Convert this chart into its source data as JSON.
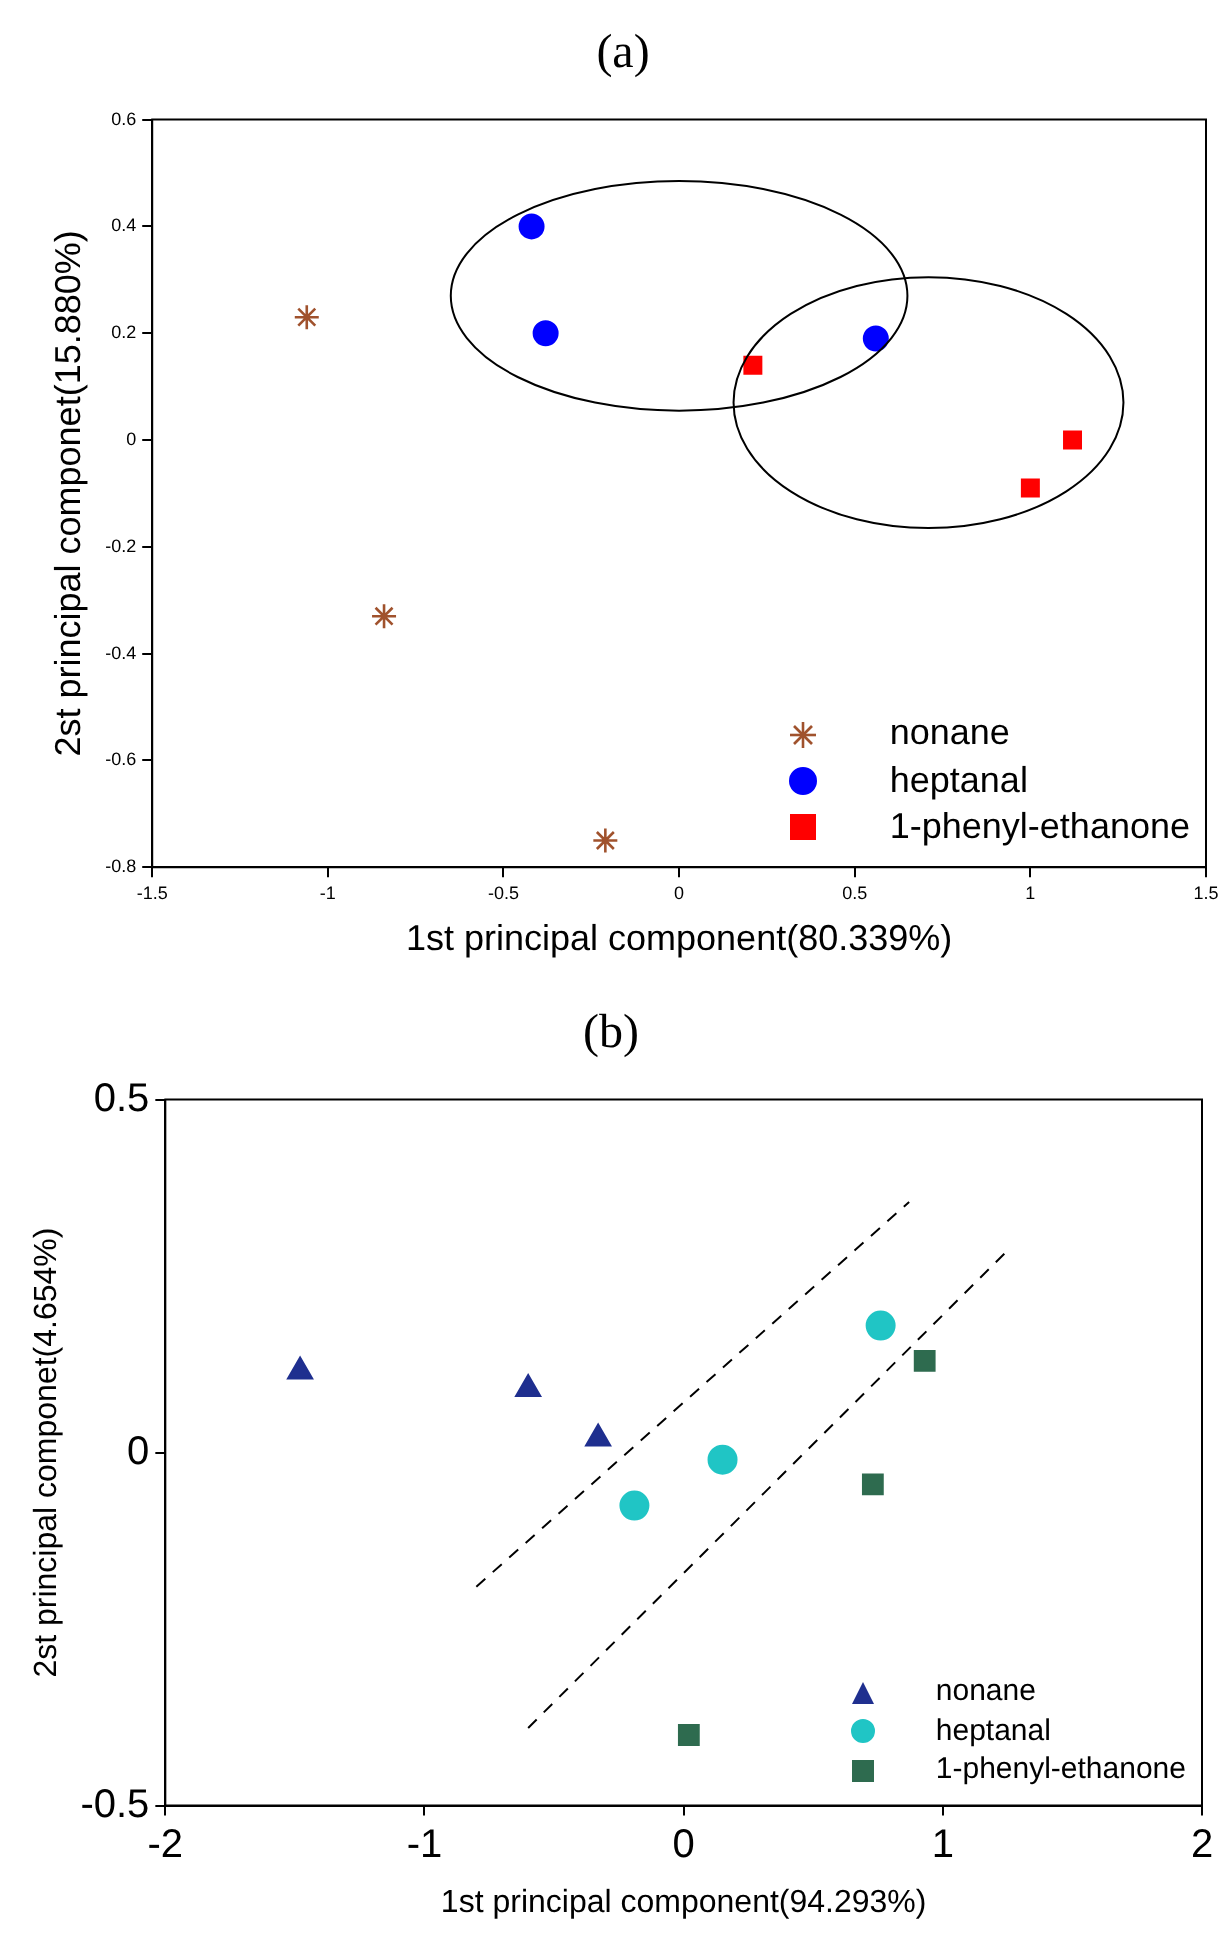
{
  "chart_data": [
    {
      "type": "scatter",
      "title": "(a)",
      "xlabel": "1st principal component(80.339%)",
      "ylabel": "2st principal componet(15.880%)",
      "xlim": [
        -1.5,
        1.5
      ],
      "ylim": [
        -0.8,
        0.6
      ],
      "xticks": [
        -1.5,
        -1,
        -0.5,
        0,
        0.5,
        1,
        1.5
      ],
      "yticks": [
        -0.8,
        -0.6,
        -0.4,
        -0.2,
        0,
        0.2,
        0.4,
        0.6
      ],
      "legend": "bottom right",
      "series": [
        {
          "name": "nonane",
          "color": "#a0522d",
          "marker": "cross",
          "x": [
            -1.06,
            -0.84,
            -0.21
          ],
          "values": [
            0.23,
            -0.33,
            -0.75
          ]
        },
        {
          "name": "heptanal",
          "color": "#0000ff",
          "marker": "circle",
          "x": [
            -0.42,
            -0.38,
            0.56
          ],
          "values": [
            0.4,
            0.2,
            0.19
          ]
        },
        {
          "name": "1-phenyl-ethanone",
          "color": "#ff0000",
          "marker": "square",
          "x": [
            0.21,
            1.0,
            1.12
          ],
          "values": [
            0.14,
            -0.09,
            0.0
          ]
        }
      ]
    },
    {
      "type": "scatter",
      "title": "(b)",
      "xlabel": "1st principal component(94.293%)",
      "ylabel": "2st principal componet(4.654%)",
      "xlim": [
        -2,
        2
      ],
      "ylim": [
        -0.5,
        0.5
      ],
      "xticks": [
        -2,
        -1,
        0,
        1,
        2
      ],
      "yticks": [
        -0.5,
        0,
        0.5
      ],
      "legend": "bottom right",
      "series": [
        {
          "name": "nonane",
          "color": "#1f2f8f",
          "marker": "triangle",
          "x": [
            -1.48,
            -0.6,
            -0.33
          ],
          "values": [
            0.115,
            0.09,
            0.02
          ]
        },
        {
          "name": "heptanal",
          "color": "#20c5c5",
          "marker": "circle",
          "x": [
            -0.19,
            0.15,
            0.76
          ],
          "values": [
            -0.075,
            -0.01,
            0.18
          ]
        },
        {
          "name": "1-phenyl-ethanone",
          "color": "#2e6b4f",
          "marker": "square",
          "x": [
            0.02,
            0.73,
            0.93
          ],
          "values": [
            -0.4,
            -0.045,
            0.13
          ]
        },
        {
          "type": "line",
          "color": "#000000",
          "marker": "none",
          "line_style": "dashed",
          "x": [
            -0.8,
            0.87
          ],
          "values": [
            -0.19,
            0.355
          ]
        },
        {
          "type": "line",
          "color": "#000000",
          "marker": "none",
          "line_style": "dashed",
          "x": [
            -0.6,
            1.26
          ],
          "values": [
            -0.39,
            0.29
          ]
        }
      ]
    }
  ]
}
